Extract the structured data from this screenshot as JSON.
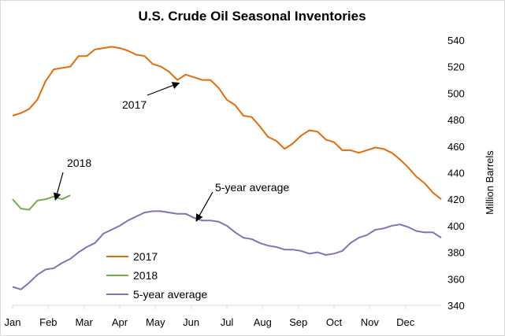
{
  "chart_data": {
    "type": "line",
    "title": "U.S. Crude Oil Seasonal Inventories",
    "xlabel": "",
    "ylabel": "Million Barrels",
    "ylim": [
      340,
      540
    ],
    "yticks": [
      340,
      360,
      380,
      400,
      420,
      440,
      460,
      480,
      500,
      520,
      540
    ],
    "y_axis_side": "right",
    "grid": false,
    "xlim_weeks": [
      0,
      52
    ],
    "month_labels": [
      "Jan",
      "Feb",
      "Mar",
      "Apr",
      "May",
      "Jun",
      "Jul",
      "Aug",
      "Sep",
      "Oct",
      "Nov",
      "Dec"
    ],
    "legend_position": "bottom-left",
    "series": [
      {
        "name": "2017",
        "color": "#E36C0A",
        "week_start": 0,
        "values": [
          483,
          485,
          488,
          495,
          509,
          518,
          519,
          520,
          528,
          528,
          533,
          534,
          535,
          534,
          532,
          529,
          528,
          522,
          520,
          516,
          510,
          514,
          512,
          510,
          510,
          504,
          495,
          491,
          483,
          482,
          475,
          467,
          464,
          458,
          462,
          468,
          472,
          471,
          465,
          463,
          457,
          457,
          455,
          457,
          459,
          458,
          455,
          450,
          444,
          437,
          432,
          425,
          420
        ]
      },
      {
        "name": "2018",
        "color": "#70AD47",
        "week_start": 0,
        "values": [
          420,
          413,
          412,
          419,
          420,
          422,
          420,
          423
        ]
      },
      {
        "name": "5-year average",
        "color": "#7F73B8",
        "week_start": 0,
        "values": [
          354,
          352,
          357,
          363,
          367,
          368,
          372,
          375,
          380,
          384,
          387,
          394,
          397,
          400,
          404,
          407,
          410,
          411,
          411,
          410,
          409,
          409,
          406,
          404,
          404,
          403,
          400,
          395,
          391,
          390,
          387,
          385,
          384,
          382,
          382,
          381,
          379,
          380,
          378,
          379,
          381,
          387,
          391,
          393,
          397,
          398,
          400,
          401,
          399,
          396,
          395,
          395,
          391
        ]
      }
    ],
    "annotations": [
      {
        "text": "2017",
        "target_series": "2017",
        "target_week": 20
      },
      {
        "text": "2018",
        "target_series": "2018",
        "target_week": 5
      },
      {
        "text": "5-year average",
        "target_series": "5-year average",
        "target_week": 22
      }
    ]
  }
}
